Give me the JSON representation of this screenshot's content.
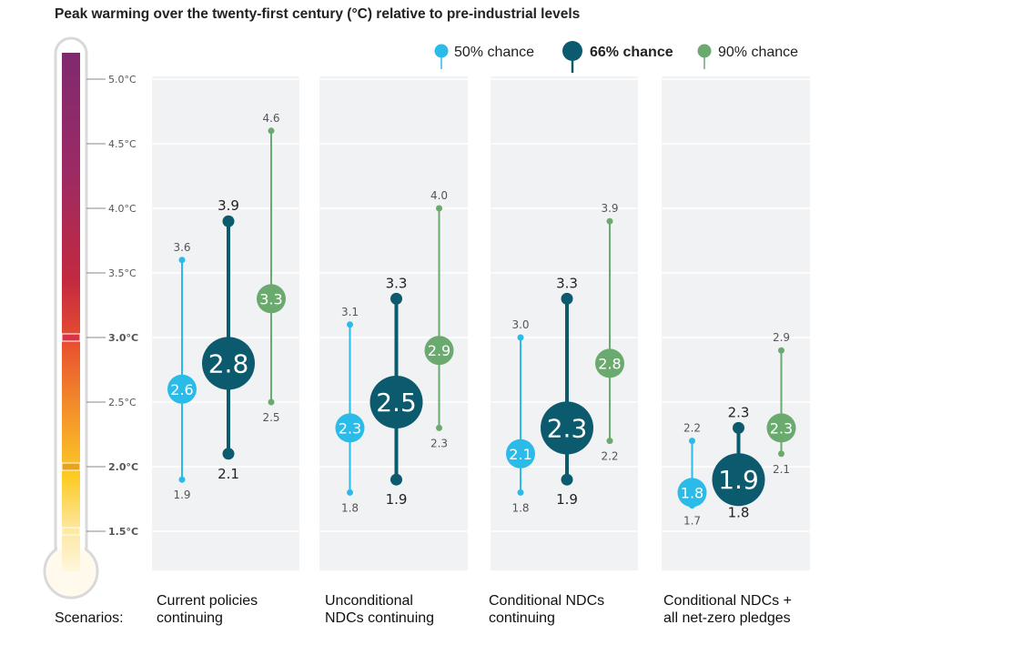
{
  "title": "Peak warming over the twenty-first century (°C) relative to pre-industrial levels",
  "scenarios_label": "Scenarios:",
  "colors": {
    "chance_50": "#2bbbe8",
    "chance_66": "#0b5a6e",
    "chance_90": "#6aaa6e",
    "panel_bg": "#f1f2f4",
    "threshold_highlight": "#d83445",
    "threshold_warn": "#e8a21d"
  },
  "chart_data": {
    "type": "range",
    "title": "Peak warming over the twenty-first century (°C) relative to pre-industrial levels",
    "ylim": [
      1.05,
      5.2
    ],
    "y_ticks": [
      {
        "value": 5.0,
        "label": "5.0°C",
        "highlight": ""
      },
      {
        "value": 4.5,
        "label": "4.5°C",
        "highlight": ""
      },
      {
        "value": 4.0,
        "label": "4.0°C",
        "highlight": ""
      },
      {
        "value": 3.5,
        "label": "3.5°C",
        "highlight": ""
      },
      {
        "value": 3.0,
        "label": "3.0°C",
        "highlight": "red"
      },
      {
        "value": 2.5,
        "label": "2.5°C",
        "highlight": ""
      },
      {
        "value": 2.0,
        "label": "2.0°C",
        "highlight": "orange"
      },
      {
        "value": 1.5,
        "label": "1.5°C",
        "highlight": "yellow"
      }
    ],
    "legend": [
      {
        "name": "50% chance",
        "bold": false
      },
      {
        "name": "66% chance",
        "bold": true
      },
      {
        "name": "90% chance",
        "bold": false
      }
    ],
    "grid": true,
    "categories": [
      "Current policies\ncontinuing",
      "Unconditional\nNDCs continuing",
      "Conditional NDCs\ncontinuing",
      "Conditional NDCs +\nall net-zero pledges"
    ],
    "series": [
      {
        "name": "50% chance",
        "central": [
          2.6,
          2.3,
          2.1,
          1.8
        ],
        "low": [
          1.9,
          1.8,
          1.8,
          1.7
        ],
        "high": [
          3.6,
          3.1,
          3.0,
          2.2
        ],
        "central_labels": [
          "2.6",
          "2.3",
          "2.1",
          "1.8"
        ],
        "low_labels": [
          "1.9",
          "1.8",
          "1.8",
          "1.7"
        ],
        "high_labels": [
          "3.6",
          "3.1",
          "3.0",
          "2.2"
        ]
      },
      {
        "name": "66% chance",
        "central": [
          2.8,
          2.5,
          2.3,
          1.9
        ],
        "low": [
          2.1,
          1.9,
          1.9,
          1.8
        ],
        "high": [
          3.9,
          3.3,
          3.3,
          2.3
        ],
        "central_labels": [
          "2.8",
          "2.5",
          "2.3",
          "1.9"
        ],
        "low_labels": [
          "2.1",
          "1.9",
          "1.9",
          "1.8"
        ],
        "high_labels": [
          "3.9",
          "3.3",
          "3.3",
          "2.3"
        ]
      },
      {
        "name": "90% chance",
        "central": [
          3.3,
          2.9,
          2.8,
          2.3
        ],
        "low": [
          2.5,
          2.3,
          2.2,
          2.1
        ],
        "high": [
          4.6,
          4.0,
          3.9,
          2.9
        ],
        "central_labels": [
          "3.3",
          "2.9",
          "2.8",
          "2.3"
        ],
        "low_labels": [
          "2.5",
          "2.3",
          "2.2",
          "2.1"
        ],
        "high_labels": [
          "4.6",
          "4.0",
          "3.9",
          "2.9"
        ]
      }
    ]
  }
}
